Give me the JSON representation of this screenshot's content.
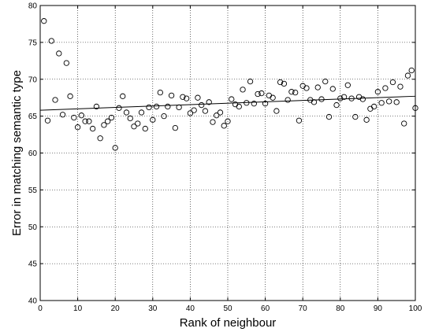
{
  "chart_data": {
    "type": "scatter",
    "title": "",
    "xlabel": "Rank of neighbour",
    "ylabel": "Error in matching semantic type",
    "xlim": [
      0,
      100
    ],
    "ylim": [
      40,
      80
    ],
    "xticks": [
      0,
      10,
      20,
      30,
      40,
      50,
      60,
      70,
      80,
      90,
      100
    ],
    "yticks": [
      40,
      45,
      50,
      55,
      60,
      65,
      70,
      75,
      80
    ],
    "grid": "dotted",
    "marker": "open-circle",
    "colors": {
      "marker": "#000000",
      "trend_line": "#000000",
      "grid": "#000000"
    },
    "series": [
      {
        "points": [
          [
            1,
            77.9
          ],
          [
            2,
            64.4
          ],
          [
            3,
            75.2
          ],
          [
            4,
            67.2
          ],
          [
            5,
            73.5
          ],
          [
            6,
            65.2
          ],
          [
            7,
            72.2
          ],
          [
            8,
            67.7
          ],
          [
            9,
            64.8
          ],
          [
            10,
            63.5
          ],
          [
            11,
            65.1
          ],
          [
            12,
            64.3
          ],
          [
            13,
            64.3
          ],
          [
            14,
            63.3
          ],
          [
            15,
            66.3
          ],
          [
            16,
            62.0
          ],
          [
            17,
            63.8
          ],
          [
            18,
            64.3
          ],
          [
            19,
            64.8
          ],
          [
            20,
            60.7
          ],
          [
            21,
            66.1
          ],
          [
            22,
            67.7
          ],
          [
            23,
            65.5
          ],
          [
            24,
            64.7
          ],
          [
            25,
            63.6
          ],
          [
            26,
            64.0
          ],
          [
            27,
            65.5
          ],
          [
            28,
            63.3
          ],
          [
            29,
            66.2
          ],
          [
            30,
            64.5
          ],
          [
            31,
            66.3
          ],
          [
            32,
            68.2
          ],
          [
            33,
            65.0
          ],
          [
            34,
            66.3
          ],
          [
            35,
            67.8
          ],
          [
            36,
            63.4
          ],
          [
            37,
            66.2
          ],
          [
            38,
            67.6
          ],
          [
            39,
            67.4
          ],
          [
            40,
            65.4
          ],
          [
            41,
            65.8
          ],
          [
            42,
            67.5
          ],
          [
            43,
            66.5
          ],
          [
            44,
            65.7
          ],
          [
            45,
            66.9
          ],
          [
            46,
            64.2
          ],
          [
            47,
            65.1
          ],
          [
            48,
            65.5
          ],
          [
            49,
            63.7
          ],
          [
            50,
            64.3
          ],
          [
            51,
            67.3
          ],
          [
            52,
            66.6
          ],
          [
            53,
            66.3
          ],
          [
            54,
            68.6
          ],
          [
            55,
            66.8
          ],
          [
            56,
            69.7
          ],
          [
            57,
            66.7
          ],
          [
            58,
            68.0
          ],
          [
            59,
            68.1
          ],
          [
            60,
            66.7
          ],
          [
            61,
            67.8
          ],
          [
            62,
            67.5
          ],
          [
            63,
            65.7
          ],
          [
            64,
            69.6
          ],
          [
            65,
            69.4
          ],
          [
            66,
            67.2
          ],
          [
            67,
            68.3
          ],
          [
            68,
            68.2
          ],
          [
            69,
            64.4
          ],
          [
            70,
            69.1
          ],
          [
            71,
            68.8
          ],
          [
            72,
            67.2
          ],
          [
            73,
            66.9
          ],
          [
            74,
            68.9
          ],
          [
            75,
            67.3
          ],
          [
            76,
            69.7
          ],
          [
            77,
            64.9
          ],
          [
            78,
            68.7
          ],
          [
            79,
            66.5
          ],
          [
            80,
            67.4
          ],
          [
            81,
            67.6
          ],
          [
            82,
            69.2
          ],
          [
            83,
            67.4
          ],
          [
            84,
            64.9
          ],
          [
            85,
            67.6
          ],
          [
            86,
            67.3
          ],
          [
            87,
            64.5
          ],
          [
            88,
            66.0
          ],
          [
            89,
            66.3
          ],
          [
            90,
            68.3
          ],
          [
            91,
            66.8
          ],
          [
            92,
            68.8
          ],
          [
            93,
            67.0
          ],
          [
            94,
            69.6
          ],
          [
            95,
            66.9
          ],
          [
            96,
            69.0
          ],
          [
            97,
            64.0
          ],
          [
            98,
            70.5
          ],
          [
            99,
            71.2
          ],
          [
            100,
            66.1
          ]
        ]
      }
    ],
    "trend_line": {
      "x": [
        0,
        100
      ],
      "y": [
        65.8,
        67.7
      ]
    }
  }
}
